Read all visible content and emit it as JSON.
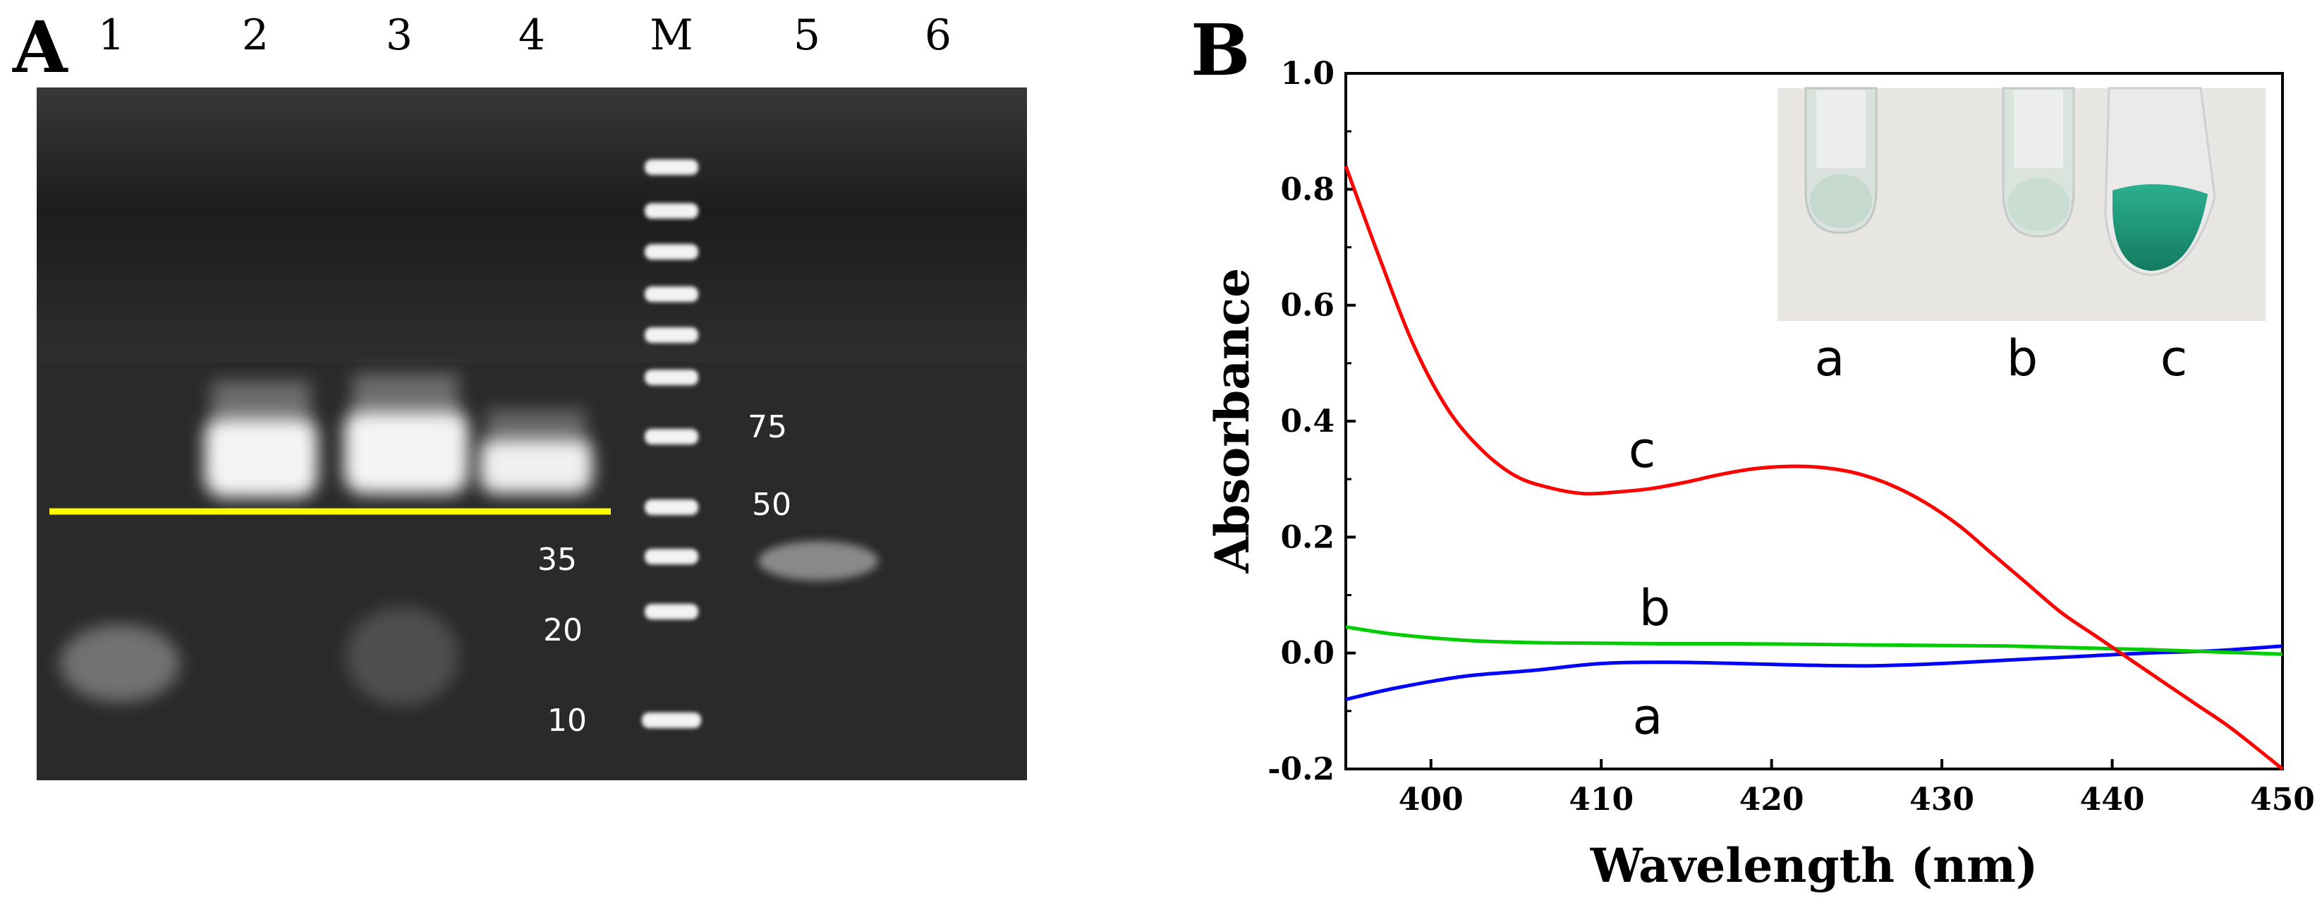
{
  "figure": {
    "panel_a": {
      "label": "A",
      "lane_labels": [
        "1",
        "2",
        "3",
        "4",
        "M",
        "5",
        "6"
      ],
      "ladder_labels": [
        "75",
        "50",
        "35",
        "20",
        "10"
      ]
    },
    "panel_b": {
      "label": "B",
      "inset_labels": [
        "a",
        "b",
        "c"
      ]
    }
  },
  "colors": {
    "gel_background": "#2b2b2b",
    "gel_band": "#f2f2f2",
    "marker_line": "#ffff00",
    "series_a": "#0000ff",
    "series_b": "#00cc00",
    "series_c": "#ff0000",
    "inset_background": "#e7e5e1",
    "inset_tube_green": "#1f9c7c"
  },
  "chart_data": {
    "type": "line",
    "title": "",
    "xlabel": "Wavelength (nm)",
    "ylabel": "Absorbance",
    "xlim": [
      395,
      450
    ],
    "ylim": [
      -0.2,
      1.0
    ],
    "xticks": [
      400,
      410,
      420,
      430,
      440,
      450
    ],
    "yticks": [
      -0.2,
      0.0,
      0.2,
      0.4,
      0.6,
      0.8,
      1.0
    ],
    "ytick_labels": [
      "-0.2",
      "0.0",
      "0.2",
      "0.4",
      "0.6",
      "0.8",
      "1.0"
    ],
    "grid": false,
    "series": [
      {
        "name": "a",
        "color": "#0000ff",
        "x": [
          395,
          398,
          402,
          406,
          410,
          414,
          418,
          422,
          426,
          430,
          434,
          438,
          442,
          446,
          450
        ],
        "y": [
          -0.08,
          -0.06,
          -0.04,
          -0.03,
          -0.018,
          -0.016,
          -0.018,
          -0.021,
          -0.022,
          -0.018,
          -0.012,
          -0.006,
          0.0,
          0.004,
          0.012
        ]
      },
      {
        "name": "b",
        "color": "#00cc00",
        "x": [
          395,
          398,
          402,
          406,
          410,
          414,
          418,
          422,
          426,
          430,
          434,
          438,
          442,
          446,
          450
        ],
        "y": [
          0.045,
          0.032,
          0.022,
          0.018,
          0.017,
          0.016,
          0.016,
          0.015,
          0.014,
          0.013,
          0.012,
          0.009,
          0.006,
          0.002,
          -0.002
        ]
      },
      {
        "name": "c",
        "color": "#ff0000",
        "x": [
          395,
          397,
          399,
          401,
          403,
          405,
          407,
          409,
          411,
          413,
          415,
          417,
          419,
          421,
          423,
          425,
          427,
          429,
          431,
          433,
          435,
          437,
          439,
          441,
          443,
          445,
          447,
          450
        ],
        "y": [
          0.84,
          0.68,
          0.53,
          0.42,
          0.35,
          0.305,
          0.285,
          0.275,
          0.278,
          0.284,
          0.295,
          0.308,
          0.318,
          0.322,
          0.32,
          0.31,
          0.29,
          0.26,
          0.22,
          0.17,
          0.12,
          0.07,
          0.03,
          -0.01,
          -0.05,
          -0.09,
          -0.13,
          -0.2
        ]
      }
    ],
    "curve_labels": [
      "c",
      "b",
      "a"
    ]
  }
}
